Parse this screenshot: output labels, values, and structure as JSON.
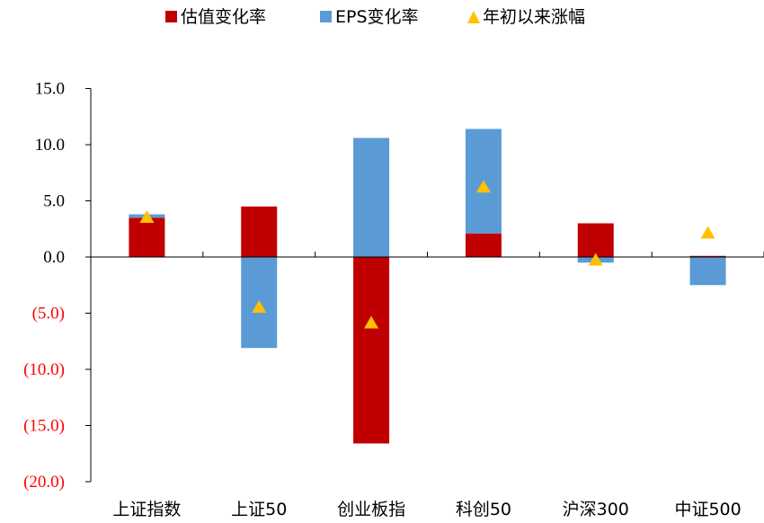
{
  "chart_data": {
    "type": "bar",
    "stacked": true,
    "categories": [
      "上证指数",
      "上证50",
      "创业板指",
      "科创50",
      "沪深300",
      "中证500"
    ],
    "series": [
      {
        "name": "估值变化率",
        "kind": "bar",
        "color": "#c00000",
        "values": [
          3.5,
          4.5,
          -16.6,
          2.1,
          3.0,
          0.1
        ]
      },
      {
        "name": "EPS变化率",
        "kind": "bar",
        "color": "#5b9bd5",
        "values": [
          0.3,
          -8.1,
          10.6,
          9.3,
          -0.5,
          -2.5
        ]
      },
      {
        "name": "年初以来涨幅",
        "kind": "marker",
        "color": "#ffc000",
        "values": [
          3.6,
          -4.4,
          -5.8,
          6.3,
          -0.2,
          2.2
        ]
      }
    ],
    "y_ticks": [
      "15.0",
      "10.0",
      "5.0",
      "0.0",
      "(5.0)",
      "(10.0)",
      "(15.0)",
      "(20.0)"
    ],
    "y_tick_values": [
      15,
      10,
      5,
      0,
      -5,
      -10,
      -15,
      -20
    ],
    "ylim": [
      -20,
      15
    ],
    "negative_label_color": "#ff0000",
    "grid": false,
    "legend_position": "top"
  }
}
